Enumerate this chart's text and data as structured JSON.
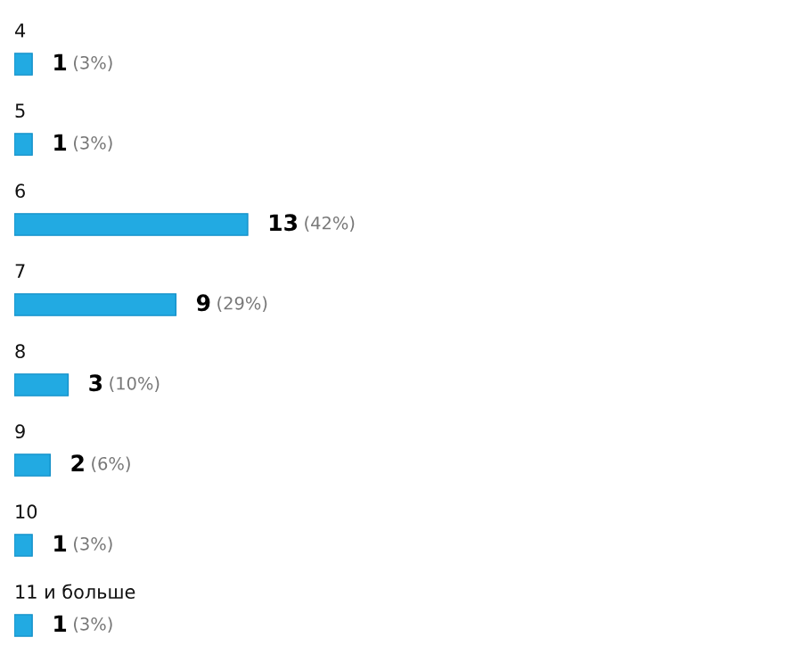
{
  "chart_data": {
    "type": "bar",
    "orientation": "horizontal",
    "categories": [
      "4",
      "5",
      "6",
      "7",
      "8",
      "9",
      "10",
      "11 и больше"
    ],
    "values": [
      1,
      1,
      13,
      9,
      3,
      2,
      1,
      1
    ],
    "value_labels": [
      "1 (3%)",
      "1 (3%)",
      "13 (42%)",
      "9 (29%)",
      "3 (10%)",
      "2 (6%)",
      "1 (3%)",
      "1 (3%)"
    ],
    "color": "#22aae2"
  }
}
